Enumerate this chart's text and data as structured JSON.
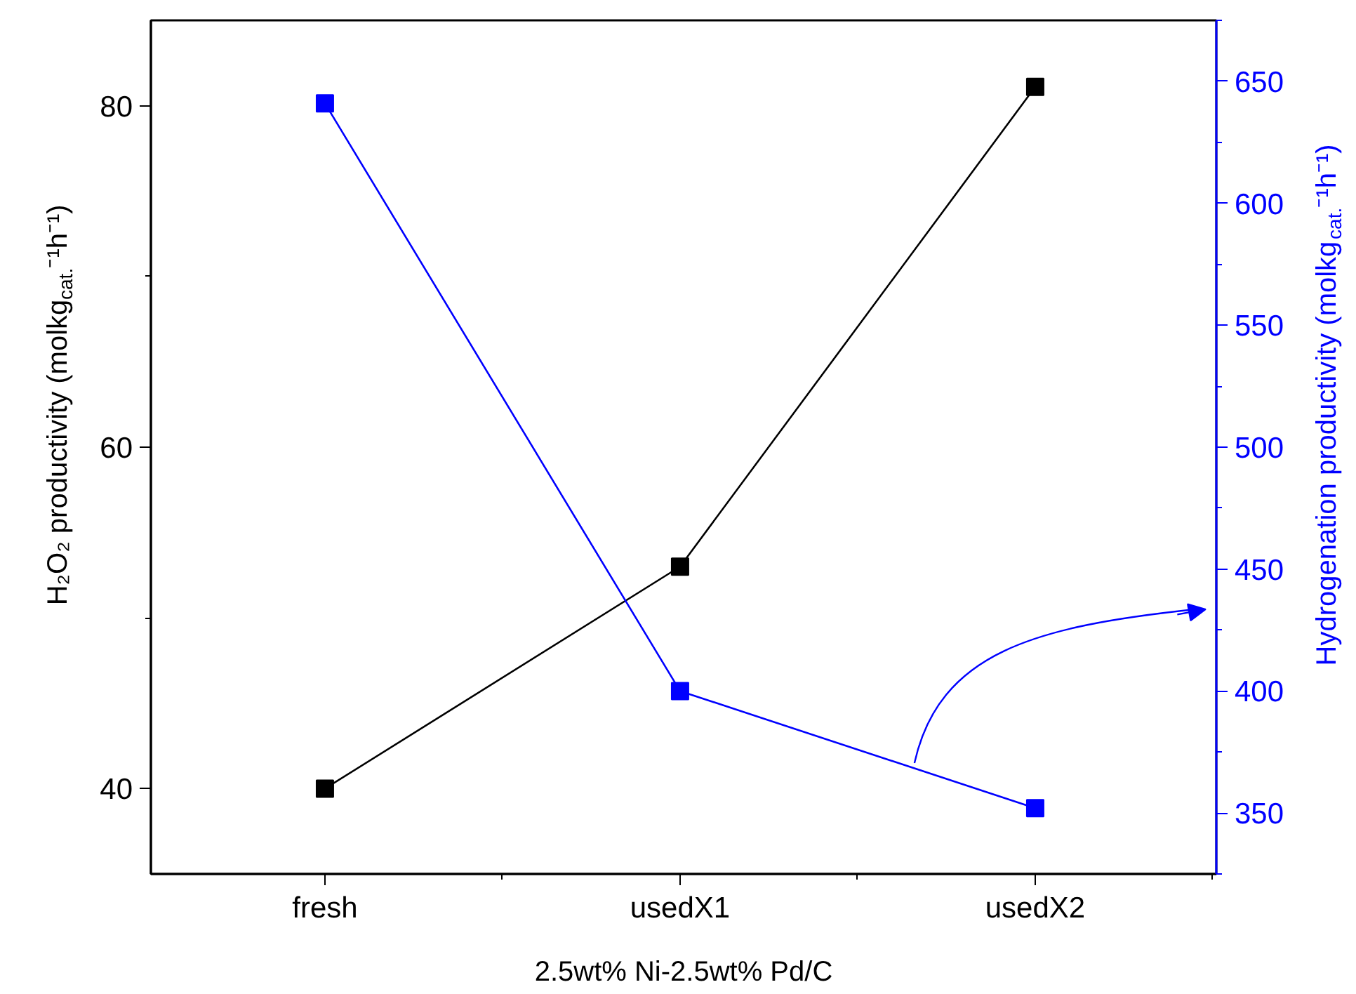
{
  "chart_data": {
    "type": "line",
    "xlabel": "2.5wt% Ni-2.5wt% Pd/C",
    "ylabel": "H₂O₂ productivity (molkg$_{cat.}$⁻¹h⁻¹)",
    "y2label": "Hydrogenation productivity (molkg$_{cat.}$⁻¹h⁻¹)",
    "categories": [
      "fresh",
      "usedX1",
      "usedX2"
    ],
    "series": [
      {
        "color": "#000000",
        "values": [
          40,
          53.0,
          81.1
        ]
      },
      {
        "color": "#0000ff",
        "values": [
          641,
          400,
          352
        ],
        "axis": "y2"
      }
    ],
    "ylim": [
      35,
      85
    ],
    "yticks": [
      40,
      60,
      80
    ],
    "y2lim": [
      325,
      675
    ],
    "y2ticks": [
      350,
      400,
      450,
      500,
      550,
      600,
      650
    ],
    "marker": "square",
    "line_style": "solid",
    "grid": false
  }
}
